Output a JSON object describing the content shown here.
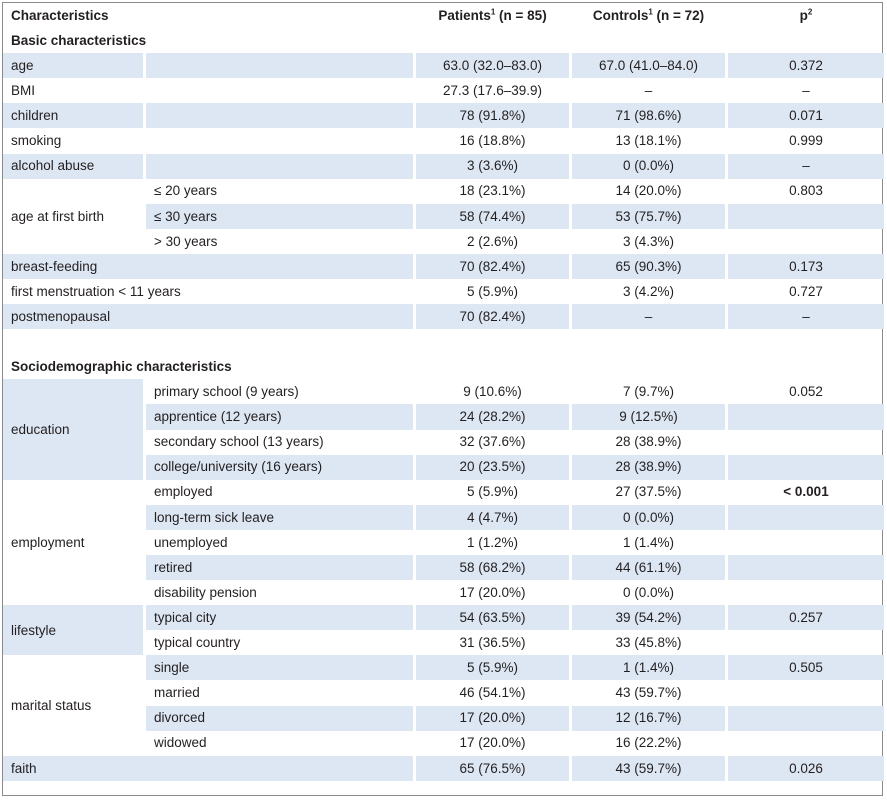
{
  "header": {
    "characteristics": "Characteristics",
    "patients": "Patients",
    "patients_n": " (n = 85)",
    "controls": "Controls",
    "controls_n": " (n = 72)",
    "p": "p",
    "sup1": "1",
    "sup2": "2"
  },
  "sections": {
    "basic": "Basic characteristics",
    "socio": "Sociodemographic characteristics"
  },
  "basic": {
    "age": {
      "label": "age",
      "patients": "63.0 (32.0–83.0)",
      "controls": "67.0 (41.0–84.0)",
      "p": "0.372"
    },
    "bmi": {
      "label": "BMI",
      "patients": "27.3 (17.6–39.9)",
      "controls": "–",
      "p": "–"
    },
    "children": {
      "label": "children",
      "patients": "78 (91.8%)",
      "controls": "71 (98.6%)",
      "p": "0.071"
    },
    "smoking": {
      "label": "smoking",
      "patients": "16 (18.8%)",
      "controls": "13 (18.1%)",
      "p": "0.999"
    },
    "alcohol": {
      "label": "alcohol abuse",
      "patients": "3 (3.6%)",
      "controls": "0 (0.0%)",
      "p": "–"
    },
    "first_birth": {
      "label": "age at first birth",
      "rows": [
        {
          "sub": "≤ 20 years",
          "patients": "18 (23.1%)",
          "controls": "14 (20.0%)",
          "p": "0.803"
        },
        {
          "sub": "≤ 30 years",
          "patients": "58 (74.4%)",
          "controls": "53 (75.7%)",
          "p": ""
        },
        {
          "sub": "> 30 years",
          "patients": "2 (2.6%)",
          "controls": "3 (4.3%)",
          "p": ""
        }
      ]
    },
    "breastfeeding": {
      "label": "breast-feeding",
      "patients": "70 (82.4%)",
      "controls": "65 (90.3%)",
      "p": "0.173"
    },
    "menstruation": {
      "label": "first menstruation < 11 years",
      "patients": "5 (5.9%)",
      "controls": "3 (4.2%)",
      "p": "0.727"
    },
    "postmeno": {
      "label": "postmenopausal",
      "patients": "70 (82.4%)",
      "controls": "–",
      "p": "–"
    }
  },
  "socio": {
    "education": {
      "label": "education",
      "rows": [
        {
          "sub": "primary school (9 years)",
          "patients": "9 (10.6%)",
          "controls": "7 (9.7%)",
          "p": "0.052"
        },
        {
          "sub": "apprentice (12 years)",
          "patients": "24 (28.2%)",
          "controls": "9 (12.5%)",
          "p": ""
        },
        {
          "sub": "secondary school (13 years)",
          "patients": "32 (37.6%)",
          "controls": "28 (38.9%)",
          "p": ""
        },
        {
          "sub": "college/university (16 years)",
          "patients": "20 (23.5%)",
          "controls": "28 (38.9%)",
          "p": ""
        }
      ]
    },
    "employment": {
      "label": "employment",
      "rows": [
        {
          "sub": "employed",
          "patients": "5 (5.9%)",
          "controls": "27 (37.5%)",
          "p": "< 0.001"
        },
        {
          "sub": "long-term sick leave",
          "patients": "4 (4.7%)",
          "controls": "0 (0.0%)",
          "p": ""
        },
        {
          "sub": "unemployed",
          "patients": "1 (1.2%)",
          "controls": "1 (1.4%)",
          "p": ""
        },
        {
          "sub": "retired",
          "patients": "58 (68.2%)",
          "controls": "44 (61.1%)",
          "p": ""
        },
        {
          "sub": "disability pension",
          "patients": "17 (20.0%)",
          "controls": "0 (0.0%)",
          "p": ""
        }
      ]
    },
    "lifestyle": {
      "label": "lifestyle",
      "rows": [
        {
          "sub": "typical city",
          "patients": "54 (63.5%)",
          "controls": "39 (54.2%)",
          "p": "0.257"
        },
        {
          "sub": "typical country",
          "patients": "31 (36.5%)",
          "controls": "33 (45.8%)",
          "p": ""
        }
      ]
    },
    "marital": {
      "label": "marital status",
      "rows": [
        {
          "sub": "single",
          "patients": "5 (5.9%)",
          "controls": "1 (1.4%)",
          "p": "0.505"
        },
        {
          "sub": "married",
          "patients": "46 (54.1%)",
          "controls": "43 (59.7%)",
          "p": ""
        },
        {
          "sub": "divorced",
          "patients": "17 (20.0%)",
          "controls": "12 (16.7%)",
          "p": ""
        },
        {
          "sub": "widowed",
          "patients": "17 (20.0%)",
          "controls": "16 (22.2%)",
          "p": ""
        }
      ]
    },
    "faith": {
      "label": "faith",
      "patients": "65 (76.5%)",
      "controls": "43 (59.7%)",
      "p": "0.026"
    }
  }
}
